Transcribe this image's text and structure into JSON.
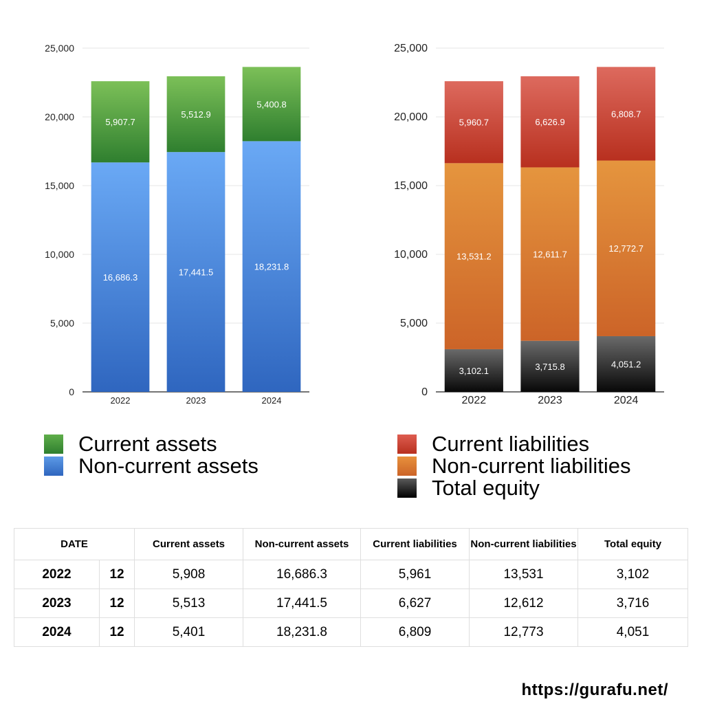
{
  "chart_data": [
    {
      "type": "bar",
      "stacked": true,
      "categories": [
        "2022",
        "2023",
        "2024"
      ],
      "y_ticks": [
        "0",
        "5,000",
        "10,000",
        "15,000",
        "20,000",
        "25,000"
      ],
      "ylim": [
        0,
        25000
      ],
      "grid": true,
      "legend_position": "bottom",
      "series": [
        {
          "name": "Non-current assets",
          "values": [
            16686.3,
            17441.5,
            18231.8
          ],
          "labels": [
            "16,686.3",
            "17,441.5",
            "18,231.8"
          ],
          "color_top": "#6aa9f5",
          "color_bottom": "#2f66bf"
        },
        {
          "name": "Current assets",
          "values": [
            5907.7,
            5512.9,
            5400.8
          ],
          "labels": [
            "5,907.7",
            "5,512.9",
            "5,400.8"
          ],
          "color_top": "#7cc058",
          "color_bottom": "#2f7f2f"
        }
      ]
    },
    {
      "type": "bar",
      "stacked": true,
      "categories": [
        "2022",
        "2023",
        "2024"
      ],
      "y_ticks": [
        "0",
        "5,000",
        "10,000",
        "15,000",
        "20,000",
        "25,000"
      ],
      "ylim": [
        0,
        25000
      ],
      "grid": true,
      "legend_position": "bottom",
      "series": [
        {
          "name": "Total equity",
          "values": [
            3102.1,
            3715.8,
            4051.2
          ],
          "labels": [
            "3,102.1",
            "3,715.8",
            "4,051.2"
          ],
          "color_top": "#6a6a6a",
          "color_bottom": "#080808"
        },
        {
          "name": "Non-current liabilities",
          "values": [
            13531.2,
            12611.7,
            12772.7
          ],
          "labels": [
            "13,531.2",
            "12,611.7",
            "12,772.7"
          ],
          "color_top": "#e5953e",
          "color_bottom": "#cc6428"
        },
        {
          "name": "Current liabilities",
          "values": [
            5960.7,
            6626.9,
            6808.7
          ],
          "labels": [
            "5,960.7",
            "6,626.9",
            "6,808.7"
          ],
          "color_top": "#dd6a5e",
          "color_bottom": "#b8301f"
        }
      ]
    }
  ],
  "legends": {
    "assets": [
      {
        "label": "Current assets",
        "color_top": "#5fae4a",
        "color_bottom": "#2f7f2f"
      },
      {
        "label": "Non-current assets",
        "color_top": "#5c9ae6",
        "color_bottom": "#2f66bf"
      }
    ],
    "liabilities": [
      {
        "label": "Current liabilities",
        "color_top": "#de5d50",
        "color_bottom": "#b8301f"
      },
      {
        "label": "Non-current liabilities",
        "color_top": "#e8913c",
        "color_bottom": "#cc6428"
      },
      {
        "label": "Total equity",
        "color_top": "#5a5a5a",
        "color_bottom": "#000000"
      }
    ]
  },
  "table": {
    "date_header": "DATE",
    "headers": [
      "Current assets",
      "Non-current assets",
      "Current liabilities",
      "Non-current liabilities",
      "Total equity"
    ],
    "rows": [
      {
        "year": "2022",
        "month": "12",
        "cells": [
          "5,908",
          "16,686.3",
          "5,961",
          "13,531",
          "3,102"
        ]
      },
      {
        "year": "2023",
        "month": "12",
        "cells": [
          "5,513",
          "17,441.5",
          "6,627",
          "12,612",
          "3,716"
        ]
      },
      {
        "year": "2024",
        "month": "12",
        "cells": [
          "5,401",
          "18,231.8",
          "6,809",
          "12,773",
          "4,051"
        ]
      }
    ]
  },
  "footer": {
    "url": "https://gurafu.net/"
  }
}
